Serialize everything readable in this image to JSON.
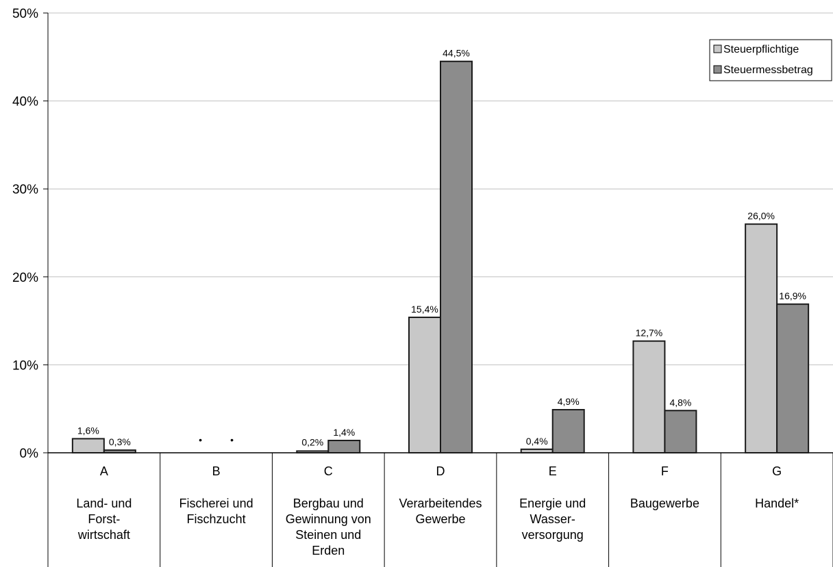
{
  "chart_data": {
    "type": "bar",
    "title": "",
    "xlabel": "",
    "ylabel": "",
    "ylim": [
      0,
      50
    ],
    "yticks": [
      "0%",
      "10%",
      "20%",
      "30%",
      "40%",
      "50%"
    ],
    "grid": true,
    "legend_position": "top-right",
    "categories": [
      {
        "code": "A",
        "name": [
          "Land- und",
          "Forst-",
          "wirtschaft"
        ]
      },
      {
        "code": "B",
        "name": [
          "Fischerei und",
          "Fischzucht"
        ]
      },
      {
        "code": "C",
        "name": [
          "Bergbau und",
          "Gewinnung von",
          "Steinen und",
          "Erden"
        ]
      },
      {
        "code": "D",
        "name": [
          "Verarbeitendes",
          "Gewerbe"
        ]
      },
      {
        "code": "E",
        "name": [
          "Energie und",
          "Wasser-",
          "versorgung"
        ]
      },
      {
        "code": "F",
        "name": [
          "Baugewerbe"
        ]
      },
      {
        "code": "G",
        "name": [
          "Handel*"
        ]
      }
    ],
    "series": [
      {
        "name": "Steuerpflichtige",
        "color": "#c8c8c8",
        "values": [
          1.6,
          null,
          0.2,
          15.4,
          0.4,
          12.7,
          26.0
        ],
        "labels": [
          "1,6%",
          "•",
          "",
          "15,4%",
          "0,4%",
          "12,7%",
          "26,0%"
        ]
      },
      {
        "name": "Steuermessbetrag",
        "color": "#8c8c8c",
        "values": [
          0.3,
          null,
          1.4,
          44.5,
          4.9,
          4.8,
          16.9
        ],
        "labels": [
          "0,3%",
          "•",
          "1,4%",
          "44,5%",
          "4,9%",
          "4,8%",
          "16,9%"
        ]
      }
    ],
    "annotations": [
      "0,2%"
    ]
  }
}
